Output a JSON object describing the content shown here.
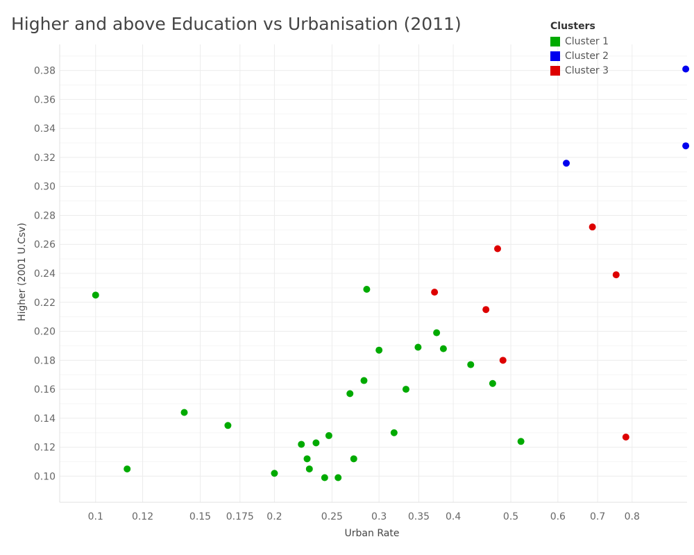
{
  "chart_data": {
    "type": "scatter",
    "title": "Higher and above Education vs Urbanisation (2011)",
    "xlabel": "Urban Rate",
    "ylabel": "Higher (2001 U.Csv)",
    "x_scale": "log",
    "xlim": [
      0.087,
      0.99
    ],
    "ylim": [
      0.082,
      0.398
    ],
    "x_ticks": [
      0.1,
      0.12,
      0.15,
      0.175,
      0.2,
      0.25,
      0.3,
      0.35,
      0.4,
      0.5,
      0.6,
      0.7,
      0.8
    ],
    "x_tick_labels": [
      "0.1",
      "0.12",
      "0.15",
      "0.175",
      "0.2",
      "0.25",
      "0.3",
      "0.35",
      "0.4",
      "0.5",
      "0.6",
      "0.7",
      "0.8"
    ],
    "y_ticks": [
      0.1,
      0.12,
      0.14,
      0.16,
      0.18,
      0.2,
      0.22,
      0.24,
      0.26,
      0.28,
      0.3,
      0.32,
      0.34,
      0.36,
      0.38
    ],
    "y_tick_labels": [
      "0.10",
      "0.12",
      "0.14",
      "0.16",
      "0.18",
      "0.20",
      "0.22",
      "0.24",
      "0.26",
      "0.28",
      "0.30",
      "0.32",
      "0.34",
      "0.36",
      "0.38"
    ],
    "grid": true,
    "legend": {
      "title": "Clusters",
      "position": "top-right"
    },
    "series": [
      {
        "name": "Cluster 1",
        "color": "#00aa00",
        "points": [
          [
            0.1,
            0.225
          ],
          [
            0.113,
            0.105
          ],
          [
            0.141,
            0.144
          ],
          [
            0.167,
            0.135
          ],
          [
            0.2,
            0.102
          ],
          [
            0.222,
            0.122
          ],
          [
            0.227,
            0.112
          ],
          [
            0.229,
            0.105
          ],
          [
            0.235,
            0.123
          ],
          [
            0.243,
            0.099
          ],
          [
            0.247,
            0.128
          ],
          [
            0.256,
            0.099
          ],
          [
            0.268,
            0.157
          ],
          [
            0.272,
            0.112
          ],
          [
            0.283,
            0.166
          ],
          [
            0.286,
            0.229
          ],
          [
            0.3,
            0.187
          ],
          [
            0.318,
            0.13
          ],
          [
            0.333,
            0.16
          ],
          [
            0.349,
            0.189
          ],
          [
            0.375,
            0.199
          ],
          [
            0.385,
            0.188
          ],
          [
            0.428,
            0.177
          ],
          [
            0.466,
            0.164
          ],
          [
            0.52,
            0.124
          ]
        ]
      },
      {
        "name": "Cluster 2",
        "color": "#0000ee",
        "points": [
          [
            0.62,
            0.316
          ],
          [
            0.985,
            0.381
          ],
          [
            0.985,
            0.328
          ]
        ]
      },
      {
        "name": "Cluster 3",
        "color": "#dd0000",
        "points": [
          [
            0.372,
            0.227
          ],
          [
            0.454,
            0.215
          ],
          [
            0.475,
            0.257
          ],
          [
            0.485,
            0.18
          ],
          [
            0.686,
            0.272
          ],
          [
            0.752,
            0.239
          ],
          [
            0.781,
            0.127
          ]
        ]
      }
    ]
  }
}
